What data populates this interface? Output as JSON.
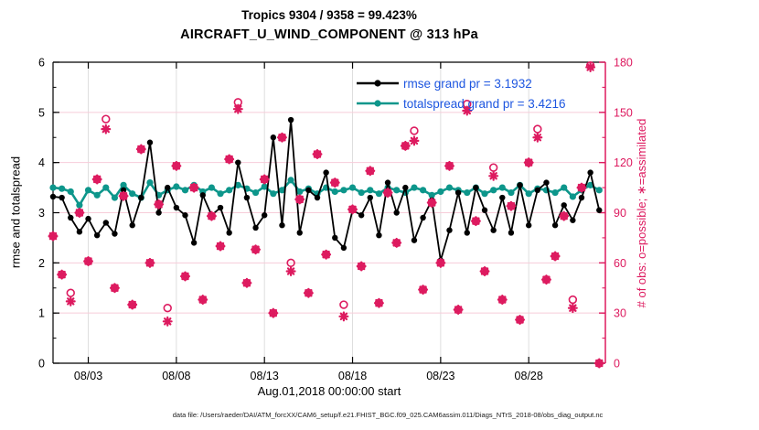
{
  "title": {
    "line1": "Tropics 9304 / 9358 = 99.423%",
    "line2": "AIRCRAFT_U_WIND_COMPONENT @ 313 hPa"
  },
  "footer": "data file: /Users/raeder/DAI/ATM_forcXX/CAM6_setup/f.e21.FHIST_BGC.f09_025.CAM6assim.011/Diags_NTrS_2018-08/obs_diag_output.nc",
  "colors": {
    "rmse_line": "#000000",
    "totalspread_line": "#0d968b",
    "obs_pink": "#dd1a5f",
    "legend_text": "#1d56e0",
    "grid_horizontal": "#f7ccd9",
    "grid_vertical": "#dedede",
    "axis_black": "#000000"
  },
  "chart_data": {
    "type": "line",
    "title": "Tropics 9304 / 9358 = 99.423%",
    "subtitle": "AIRCRAFT_U_WIND_COMPONENT @ 313 hPa",
    "xlabel": "Aug.01,2018 00:00:00 start",
    "x_start_days": 0,
    "x_step_days": 0.5,
    "x_domain_days": [
      0,
      31.35
    ],
    "x_ticks": [
      {
        "day": 2,
        "label": "08/03"
      },
      {
        "day": 7,
        "label": "08/08"
      },
      {
        "day": 12,
        "label": "08/13"
      },
      {
        "day": 17,
        "label": "08/18"
      },
      {
        "day": 22,
        "label": "08/23"
      },
      {
        "day": 27,
        "label": "08/28"
      }
    ],
    "left_axis": {
      "label": "rmse and totalspread",
      "min": 0,
      "max": 6,
      "ticks": [
        0,
        1,
        2,
        3,
        4,
        5,
        6
      ],
      "minor_step": 0.5
    },
    "right_axis": {
      "label": "# of obs: o=possible; ∗=assimilated",
      "min": 0,
      "max": 180,
      "ticks": [
        0,
        30,
        60,
        90,
        120,
        150,
        180
      ],
      "minor_step": 15
    },
    "legend_position": "top-right-inside",
    "grid": true,
    "series": [
      {
        "name": "rmse grand pr = 3.1932",
        "axis": "left",
        "color": "#000000",
        "marker": "filled-circle",
        "values": [
          3.32,
          3.3,
          2.9,
          2.62,
          2.88,
          2.55,
          2.8,
          2.58,
          3.45,
          2.75,
          3.3,
          4.4,
          3.0,
          3.5,
          3.1,
          2.95,
          2.4,
          3.35,
          2.95,
          3.1,
          2.6,
          4.0,
          3.3,
          2.7,
          2.95,
          4.5,
          2.75,
          4.85,
          2.6,
          3.45,
          3.3,
          3.8,
          2.5,
          2.3,
          3.05,
          2.95,
          3.3,
          2.55,
          3.6,
          3.0,
          3.5,
          2.45,
          2.9,
          3.25,
          2.05,
          2.65,
          3.4,
          2.6,
          3.5,
          3.05,
          2.65,
          3.3,
          2.6,
          3.55,
          2.75,
          3.45,
          3.6,
          2.75,
          3.15,
          2.85,
          3.3,
          3.8,
          3.05
        ]
      },
      {
        "name": "totalspread grand pr = 3.4216",
        "axis": "left",
        "color": "#0d968b",
        "marker": "filled-circle",
        "values": [
          3.5,
          3.48,
          3.42,
          3.15,
          3.45,
          3.35,
          3.5,
          3.3,
          3.55,
          3.38,
          3.3,
          3.6,
          3.35,
          3.45,
          3.52,
          3.45,
          3.55,
          3.42,
          3.5,
          3.38,
          3.45,
          3.55,
          3.48,
          3.4,
          3.52,
          3.38,
          3.45,
          3.65,
          3.42,
          3.48,
          3.38,
          3.5,
          3.42,
          3.45,
          3.5,
          3.4,
          3.45,
          3.38,
          3.5,
          3.45,
          3.4,
          3.5,
          3.45,
          3.35,
          3.42,
          3.5,
          3.45,
          3.4,
          3.5,
          3.38,
          3.45,
          3.5,
          3.4,
          3.55,
          3.38,
          3.48,
          3.45,
          3.4,
          3.5,
          3.32,
          3.45,
          3.55,
          3.45
        ]
      },
      {
        "name": "possible",
        "axis": "right",
        "color": "#dd1a5f",
        "marker": "open-circle",
        "values": [
          76,
          53,
          42,
          90,
          61,
          110,
          146,
          45,
          100,
          35,
          128,
          60,
          95,
          33,
          118,
          52,
          105,
          38,
          88,
          70,
          122,
          156,
          48,
          68,
          110,
          30,
          135,
          60,
          98,
          42,
          125,
          65,
          108,
          35,
          92,
          58,
          115,
          36,
          102,
          72,
          130,
          139,
          44,
          96,
          60,
          118,
          32,
          155,
          85,
          55,
          117,
          38,
          94,
          26,
          120,
          140,
          50,
          64,
          88,
          38,
          105,
          178,
          0
        ]
      },
      {
        "name": "assimilated",
        "axis": "right",
        "color": "#dd1a5f",
        "marker": "asterisk",
        "values": [
          76,
          53,
          37,
          90,
          61,
          110,
          140,
          45,
          100,
          35,
          128,
          60,
          95,
          25,
          118,
          52,
          105,
          38,
          88,
          70,
          122,
          152,
          48,
          68,
          110,
          30,
          135,
          55,
          98,
          42,
          125,
          65,
          108,
          28,
          92,
          58,
          115,
          36,
          102,
          72,
          130,
          133,
          44,
          96,
          60,
          118,
          32,
          151,
          85,
          55,
          112,
          38,
          94,
          26,
          120,
          135,
          50,
          64,
          88,
          33,
          105,
          177,
          0
        ]
      }
    ]
  }
}
